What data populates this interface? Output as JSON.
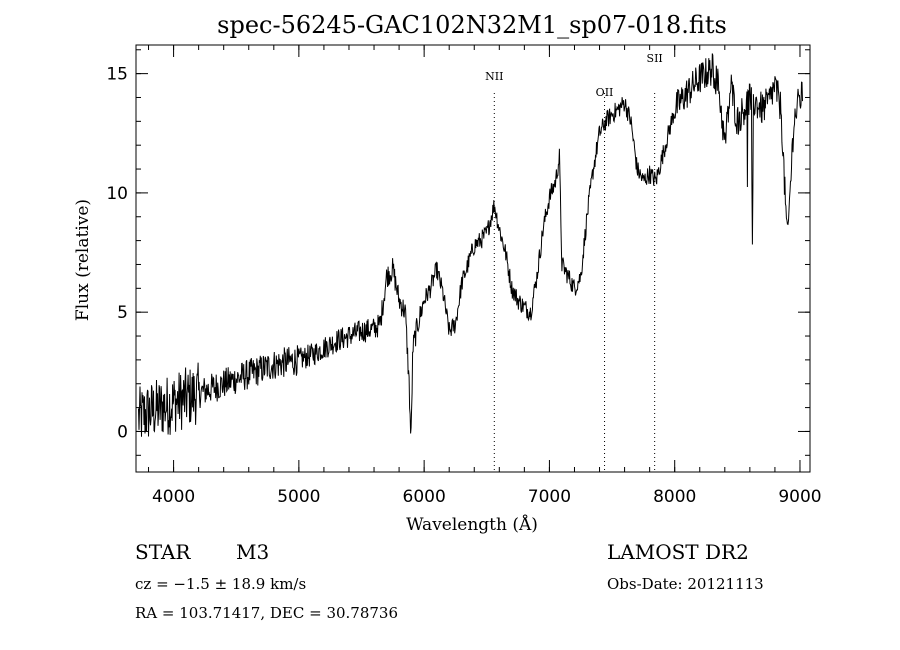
{
  "chart_data": {
    "type": "line",
    "title": "spec-56245-GAC102N32M1_sp07-018.fits",
    "xlabel": "Wavelength (Å)",
    "ylabel": "Flux (relative)",
    "xlim": [
      3700,
      9080
    ],
    "ylim": [
      -1.7,
      16.2
    ],
    "x_ticks": [
      4000,
      5000,
      6000,
      7000,
      8000,
      9000
    ],
    "y_ticks": [
      0,
      5,
      10,
      15
    ],
    "x_minor_step": 200,
    "y_minor_step": 1,
    "grid": false,
    "line_color": "#000000",
    "series": [
      {
        "x": [
          3700,
          3800,
          3900,
          4000,
          4100,
          4200,
          4300,
          4400,
          4500,
          4600,
          4700,
          4800,
          4900,
          5000,
          5100,
          5200,
          5300,
          5400,
          5500,
          5600,
          5650,
          5700,
          5750,
          5800,
          5850,
          5880,
          5895,
          5910,
          5950,
          6000,
          6050,
          6100,
          6150,
          6200,
          6250,
          6300,
          6350,
          6400,
          6450,
          6500,
          6560,
          6600,
          6650,
          6700,
          6750,
          6800,
          6850,
          6900,
          6950,
          7000,
          7050,
          7080,
          7100,
          7150,
          7200,
          7250,
          7300,
          7350,
          7400,
          7450,
          7500,
          7550,
          7600,
          7650,
          7700,
          7750,
          7800,
          7850,
          7900,
          7950,
          8000,
          8100,
          8200,
          8300,
          8350,
          8400,
          8450,
          8500,
          8600,
          8700,
          8750,
          8800,
          8850,
          8880,
          8900,
          8950,
          9000
        ],
        "y": [
          0.5,
          0.8,
          1.0,
          1.2,
          1.4,
          1.6,
          1.8,
          2.0,
          2.2,
          2.4,
          2.6,
          2.8,
          2.9,
          3.0,
          3.2,
          3.5,
          3.8,
          4.0,
          4.2,
          4.3,
          4.5,
          6.5,
          6.8,
          5.5,
          5.0,
          2.0,
          -0.5,
          3.5,
          4.5,
          5.5,
          6.0,
          6.8,
          5.8,
          4.2,
          4.5,
          6.2,
          7.0,
          7.8,
          8.0,
          8.3,
          9.5,
          8.5,
          7.5,
          6.0,
          5.5,
          5.2,
          5.0,
          6.5,
          8.5,
          9.8,
          10.5,
          11.5,
          7.0,
          6.5,
          6.0,
          6.5,
          9.0,
          11.0,
          12.5,
          13.0,
          13.3,
          13.5,
          13.8,
          13.0,
          11.0,
          10.5,
          10.8,
          10.5,
          11.5,
          12.5,
          13.5,
          14.2,
          14.8,
          15.2,
          14.5,
          12.0,
          14.5,
          13.0,
          14.0,
          13.5,
          13.8,
          14.5,
          13.5,
          10.0,
          8.0,
          13.0,
          14.0
        ]
      }
    ],
    "markers": [
      {
        "label": "NII",
        "x": 6560
      },
      {
        "label": "OII",
        "x": 7440
      },
      {
        "label": "SII",
        "x": 7840
      }
    ],
    "footer": {
      "object": "STAR",
      "subclass": "M3",
      "survey": "LAMOST DR2",
      "cz": "cz = −1.5 ± 18.9 km/s",
      "obs_date": "Obs-Date: 20121113",
      "radec": "RA = 103.71417, DEC =  30.78736"
    }
  }
}
